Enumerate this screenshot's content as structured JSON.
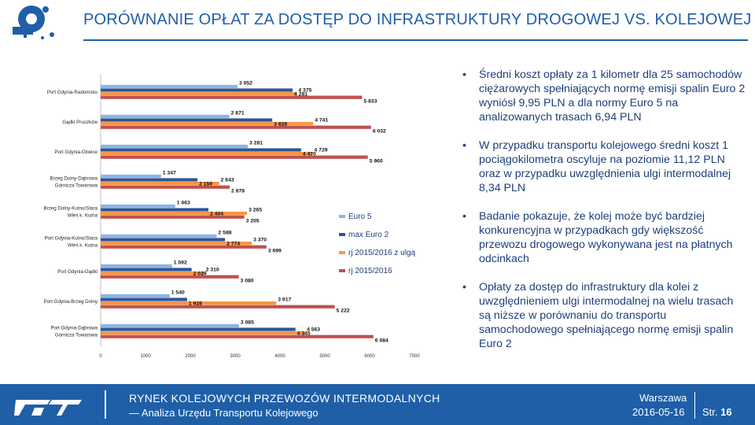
{
  "header": {
    "title": "PORÓWNANIE OPŁAT ZA DOSTĘP DO INFRASTRUKTURY DROGOWEJ VS. KOLEJOWEJ"
  },
  "colors": {
    "accent": "#1f5fa8",
    "euro5": "#8eb4e3",
    "maxeuro2": "#2f5597",
    "rj_ulga": "#f79646",
    "rj": "#c0504d"
  },
  "chart_data": {
    "type": "bar",
    "orientation": "horizontal",
    "xlim": [
      0,
      7000
    ],
    "xticks": [
      "0",
      "1000",
      "2000",
      "3000",
      "4000",
      "5000",
      "6000",
      "7000"
    ],
    "legend": [
      "Euro 5",
      "max Euro 2",
      "rj 2015/2016 z ulgą",
      "rj 2015/2016"
    ],
    "groups": [
      {
        "label": "Port Gdynia-Radomsko",
        "values": [
          3052,
          4281,
          4375,
          5833
        ],
        "labels": [
          "3 052",
          "4 281",
          "4 375",
          "5 833"
        ]
      },
      {
        "label": "Gądki Pruszków",
        "values": [
          2871,
          3828,
          4741,
          6032
        ],
        "labels": [
          "2 871",
          "3 828",
          "4 741",
          "6 032"
        ]
      },
      {
        "label": "Port Gdynia-Gliwice",
        "values": [
          3281,
          4470,
          4729,
          5960
        ],
        "labels": [
          "3 281",
          "4 470",
          "4 729",
          "5 960"
        ]
      },
      {
        "label": "Brzeg Dolny-Dąbrowa Górnicza Towarowa",
        "values": [
          1347,
          2159,
          2643,
          2878
        ],
        "labels": [
          "1 347",
          "2 159",
          "2 643",
          "2 878"
        ]
      },
      {
        "label": "Brzeg Dolny-Kutno/Stara Wieś k. Kutna",
        "values": [
          1663,
          2404,
          3265,
          3205
        ],
        "labels": [
          "1 663",
          "2 404",
          "3 265",
          "3 205"
        ]
      },
      {
        "label": "Port Gdynia-Kutno/Stara Wieś k. Kutna",
        "values": [
          2588,
          2774,
          3370,
          3699
        ],
        "labels": [
          "2 588",
          "2 774",
          "3 370",
          "3 699"
        ]
      },
      {
        "label": "Port Gdynia-Gądki",
        "values": [
          1592,
          2029,
          2310,
          3080
        ],
        "labels": [
          "1 592",
          "2 029",
          "2 310",
          "3 080"
        ]
      },
      {
        "label": "Port Gdynia-Brzeg Dolny",
        "values": [
          1540,
          1928,
          3917,
          5222
        ],
        "labels": [
          "1 540",
          "1 928",
          "3 917",
          "5 222"
        ]
      },
      {
        "label": "Port Gdynia-Dąbrowa Górnicza Towarowa",
        "values": [
          3085,
          4345,
          4563,
          6084
        ],
        "labels": [
          "3 085",
          "4 345",
          "4 563",
          "6 084"
        ]
      }
    ]
  },
  "bullets": [
    "Średni koszt opłaty za 1 kilometr dla 25 samochodów ciężarowych spełniających normę emisji spalin Euro 2 wyniósł 9,95 PLN a dla normy Euro 5 na analizowanych trasach 6,94 PLN",
    "W przypadku transportu kolejowego średni koszt 1 pociągokilometra oscyluje na poziomie 11,12 PLN oraz w przypadku uwzględnienia ulgi intermodalnej 8,34 PLN",
    "Badanie pokazuje, że kolej może być bardziej konkurencyjna w przypadkach gdy większość przewozu drogowego wykonywana jest na płatnych odcinkach",
    "Opłaty za dostęp do infrastruktury dla kolei z uwzględnieniem ulgi intermodalnej na wielu trasach są niższe w porównaniu do transportu samochodowego spełniającego normę emisji spalin Euro 2"
  ],
  "footer": {
    "title": "RYNEK KOLEJOWYCH PRZEWOZÓW INTERMODALNYCH",
    "subtitle": "— Analiza Urzędu Transportu Kolejowego",
    "city": "Warszawa",
    "date": "2016-05-16",
    "page_label": "Str.",
    "page_number": "16"
  }
}
